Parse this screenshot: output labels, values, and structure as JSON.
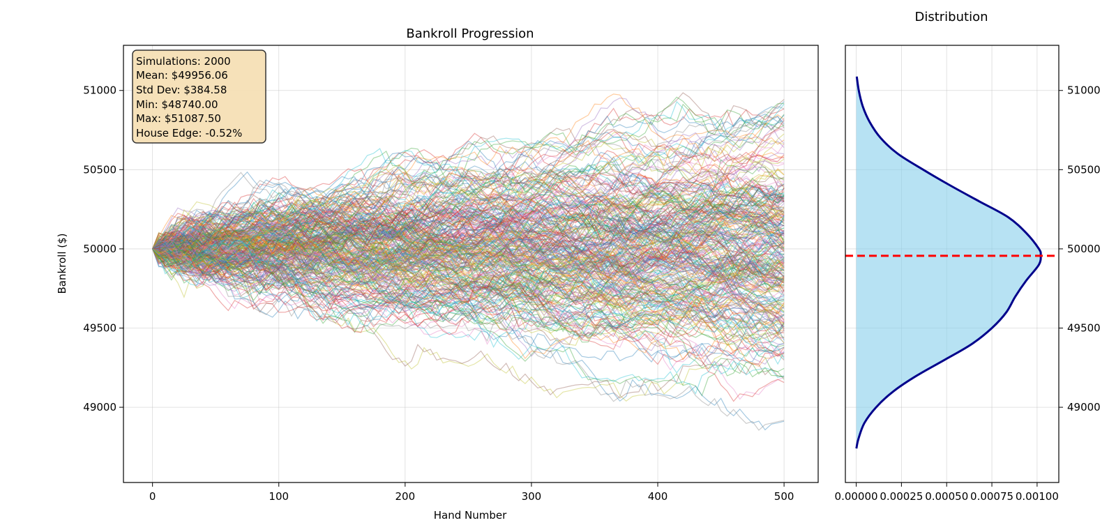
{
  "chart_data": [
    {
      "type": "line",
      "title": "Bankroll Progression",
      "xlabel": "Hand Number",
      "ylabel": "Bankroll ($)",
      "xlim": [
        -23,
        527
      ],
      "ylim": [
        48525,
        51285
      ],
      "xticks": [
        0,
        100,
        200,
        300,
        400,
        500
      ],
      "yticks": [
        49000,
        49500,
        50000,
        50500,
        51000
      ],
      "grid": true,
      "start_bankroll": 50000,
      "num_hands": 500,
      "num_simulations": 2000,
      "stats_box": {
        "lines": [
          "Simulations: 2000",
          "Mean: $49956.06",
          "Std Dev: $384.58",
          "Min: $48740.00",
          "Max: $51087.50",
          "House Edge: -0.52%"
        ],
        "placement": "top-left"
      },
      "series_colors": [
        "#1f77b4",
        "#ff7f0e",
        "#2ca02c",
        "#d62728",
        "#9467bd",
        "#8c564b",
        "#e377c2",
        "#7f7f7f",
        "#bcbd22",
        "#17becf"
      ]
    },
    {
      "type": "area",
      "title": "Distribution",
      "orientation": "horizontal",
      "xlim": [
        -6e-05,
        0.00112
      ],
      "ylim": [
        48525,
        51285
      ],
      "xticks": [
        0.0,
        0.00025,
        0.0005,
        0.00075,
        0.001
      ],
      "xtick_labels": [
        "0.00000",
        "0.00025",
        "0.00050",
        "0.00075",
        "0.00100"
      ],
      "yticks": [
        49000,
        49500,
        50000,
        50500,
        51000
      ],
      "y_axis_side": "right",
      "grid": true,
      "density_curve": [
        {
          "y": 48740,
          "density": 1e-06
        },
        {
          "y": 48800,
          "density": 1.2e-05
        },
        {
          "y": 48900,
          "density": 4.5e-05
        },
        {
          "y": 49000,
          "density": 0.00011
        },
        {
          "y": 49100,
          "density": 0.000205
        },
        {
          "y": 49200,
          "density": 0.000335
        },
        {
          "y": 49300,
          "density": 0.00049
        },
        {
          "y": 49400,
          "density": 0.00064
        },
        {
          "y": 49500,
          "density": 0.00075
        },
        {
          "y": 49600,
          "density": 0.00083
        },
        {
          "y": 49700,
          "density": 0.00088
        },
        {
          "y": 49800,
          "density": 0.00094
        },
        {
          "y": 49900,
          "density": 0.00101
        },
        {
          "y": 49960,
          "density": 0.00102
        },
        {
          "y": 50000,
          "density": 0.00101
        },
        {
          "y": 50100,
          "density": 0.00094
        },
        {
          "y": 50200,
          "density": 0.00084
        },
        {
          "y": 50300,
          "density": 0.00068
        },
        {
          "y": 50400,
          "density": 0.00052
        },
        {
          "y": 50500,
          "density": 0.00037
        },
        {
          "y": 50600,
          "density": 0.00023
        },
        {
          "y": 50700,
          "density": 0.000135
        },
        {
          "y": 50800,
          "density": 7.5e-05
        },
        {
          "y": 50900,
          "density": 3.6e-05
        },
        {
          "y": 51000,
          "density": 1.4e-05
        },
        {
          "y": 51088,
          "density": 3e-06
        }
      ],
      "mean_line": 49956.06,
      "fill_color": "#87ceeb",
      "line_color": "#00008b",
      "mean_line_color": "#ff0000"
    }
  ]
}
